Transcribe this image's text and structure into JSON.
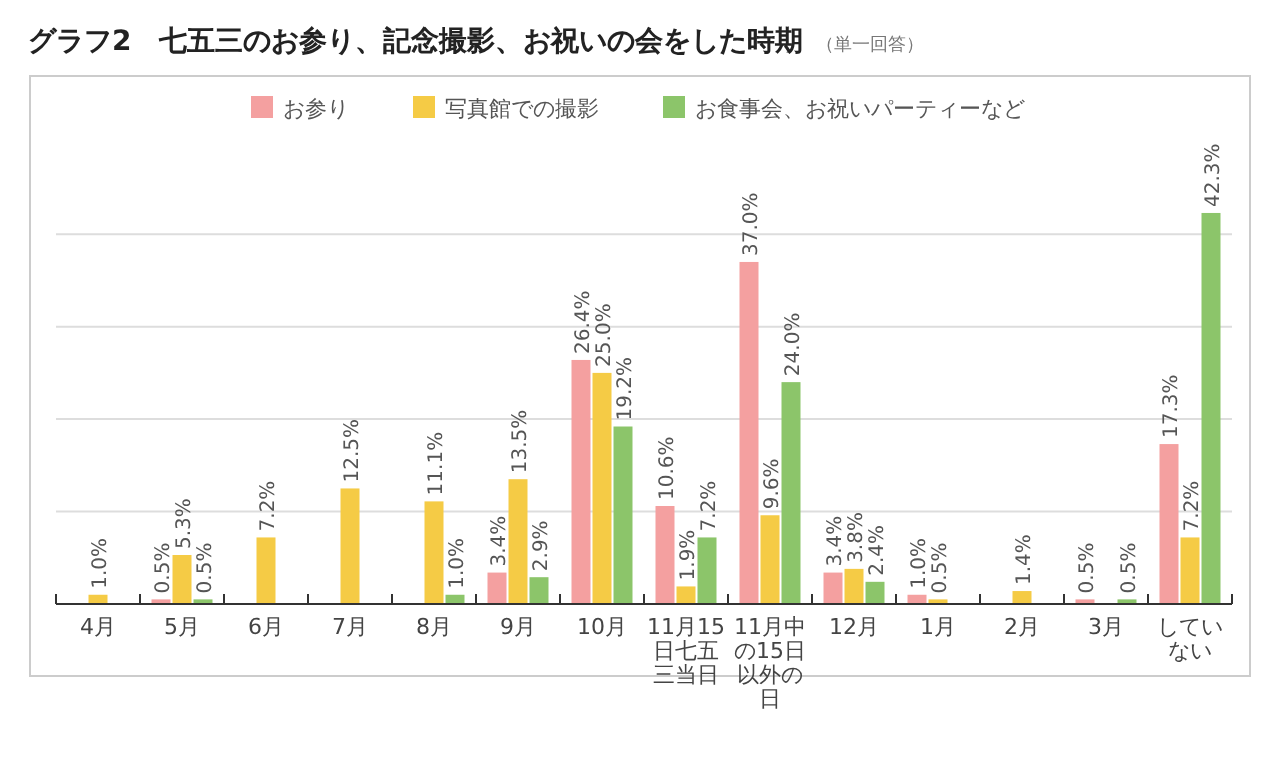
{
  "chart_data": {
    "type": "bar",
    "title": "グラフ2　七五三のお参り、記念撮影、お祝いの会をした時期",
    "subtitle": "（単一回答）",
    "categories": [
      "4月",
      "5月",
      "6月",
      "7月",
      "8月",
      "9月",
      "10月",
      "11月15日七五三当日",
      "11月中の15日以外の日",
      "12月",
      "1月",
      "2月",
      "3月",
      "していない"
    ],
    "series": [
      {
        "name": "お参り",
        "color": "#f4a0a0",
        "values": [
          null,
          0.5,
          null,
          null,
          null,
          3.4,
          26.4,
          10.6,
          37.0,
          3.4,
          1.0,
          null,
          0.5,
          17.3
        ],
        "value_labels": [
          null,
          "0.5%",
          null,
          null,
          null,
          "3.4%",
          "26.4%",
          "10.6%",
          "37.0%",
          "3.4%",
          "1.0%",
          null,
          "0.5%",
          "17.3%"
        ]
      },
      {
        "name": "写真館での撮影",
        "color": "#f5cb45",
        "values": [
          1.0,
          5.3,
          7.2,
          12.5,
          11.1,
          13.5,
          25.0,
          1.9,
          9.6,
          3.8,
          0.5,
          1.4,
          null,
          7.2
        ],
        "value_labels": [
          "1.0%",
          "5.3%",
          "7.2%",
          "12.5%",
          "11.1%",
          "13.5%",
          "25.0%",
          "1.9%",
          "9.6%",
          "3.8%",
          "0.5%",
          "1.4%",
          null,
          "7.2%"
        ]
      },
      {
        "name": "お食事会、お祝いパーティーなど",
        "color": "#8cc56a",
        "values": [
          null,
          0.5,
          null,
          null,
          1.0,
          2.9,
          19.2,
          7.2,
          24.0,
          2.4,
          null,
          null,
          0.5,
          42.3
        ],
        "value_labels": [
          null,
          "0.5%",
          null,
          null,
          "1.0%",
          "2.9%",
          "19.2%",
          "7.2%",
          "24.0%",
          "2.4%",
          null,
          null,
          "0.5%",
          "42.3%"
        ]
      }
    ],
    "yticks": [
      {
        "value": 0,
        "label": null
      },
      {
        "value": 10,
        "label": null
      },
      {
        "value": 20,
        "label": null
      },
      {
        "value": 30,
        "label": null
      },
      {
        "value": 40,
        "label": null
      }
    ],
    "tick_labels": "x",
    "grid": "y",
    "legend": "top"
  }
}
